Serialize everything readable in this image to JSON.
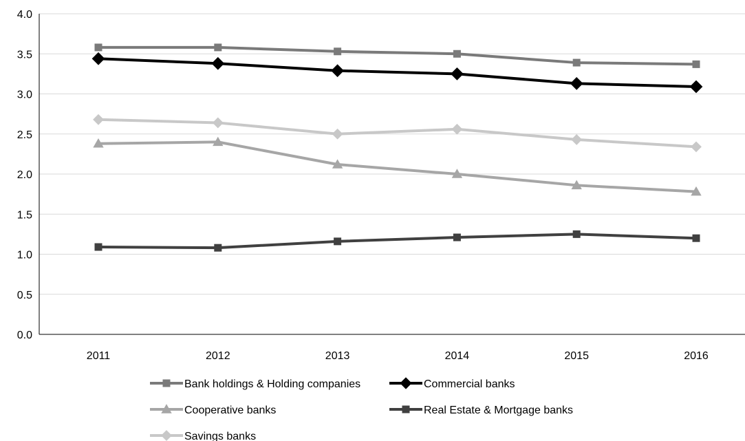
{
  "chart_data": {
    "type": "line",
    "title": "",
    "xlabel": "",
    "ylabel": "",
    "categories": [
      "2011",
      "2012",
      "2013",
      "2014",
      "2015",
      "2016"
    ],
    "ylim": [
      0,
      4
    ],
    "y_ticks": [
      "0.0",
      "0.5",
      "1.0",
      "1.5",
      "2.0",
      "2.5",
      "3.0",
      "3.5",
      "4.0"
    ],
    "grid": true,
    "legend_position": "bottom",
    "series": [
      {
        "name": "Bank holdings & Holding companies",
        "marker": "square",
        "color": "#7a7a7a",
        "values": [
          3.58,
          3.58,
          3.53,
          3.5,
          3.39,
          3.37
        ]
      },
      {
        "name": "Commercial banks",
        "marker": "diamond",
        "color": "#000000",
        "values": [
          3.44,
          3.38,
          3.29,
          3.25,
          3.13,
          3.09
        ]
      },
      {
        "name": "Cooperative banks",
        "marker": "triangle",
        "color": "#a6a6a6",
        "values": [
          2.38,
          2.4,
          2.12,
          2.0,
          1.86,
          1.78
        ]
      },
      {
        "name": "Real Estate & Mortgage banks",
        "marker": "square",
        "color": "#404040",
        "values": [
          1.09,
          1.08,
          1.16,
          1.21,
          1.25,
          1.2
        ]
      },
      {
        "name": "Savings banks",
        "marker": "diamond",
        "color": "#c8c8c8",
        "values": [
          2.68,
          2.64,
          2.5,
          2.56,
          2.43,
          2.34
        ]
      }
    ]
  }
}
